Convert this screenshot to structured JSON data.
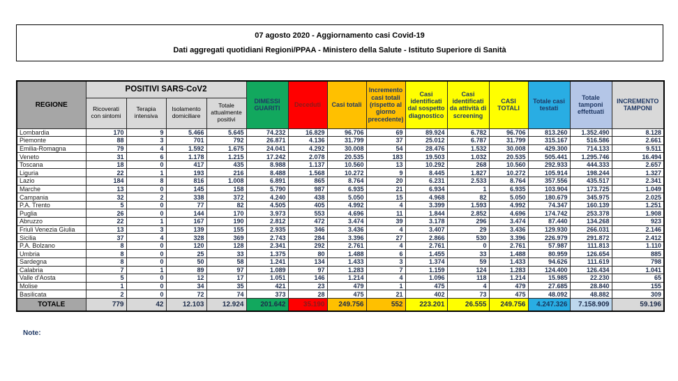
{
  "title": {
    "line1": "07 agosto 2020 - Aggiornamento casi Covid-19",
    "line2": "Dati aggregati quotidiani Regioni/PPAA - Ministero della Salute - Istituto Superiore di Sanità"
  },
  "table": {
    "region_header": "REGIONE",
    "group_header": "POSITIVI SARS-CoV2",
    "sub_headers": [
      "Ricoverati con sintomi",
      "Terapia intensiva",
      "Isolamento domiciliare",
      "Totale attualmente positivi"
    ],
    "headers": [
      "DIMESSI GUARITI",
      "Deceduti",
      "Casi totali",
      "Incremento casi totali (rispetto al giorno precedente)",
      "Casi identificati dal sospetto diagnostico",
      "Casi identificati da attività di screening",
      "CASI TOTALI",
      "Totale casi testati",
      "Totale tamponi effettuati",
      "INCREMENTO TAMPONI"
    ],
    "rows": [
      [
        "Lombardia",
        "170",
        "9",
        "5.466",
        "5.645",
        "74.232",
        "16.829",
        "96.706",
        "69",
        "89.924",
        "6.782",
        "96.706",
        "813.260",
        "1.352.490",
        "8.128"
      ],
      [
        "Piemonte",
        "88",
        "3",
        "701",
        "792",
        "26.871",
        "4.136",
        "31.799",
        "37",
        "25.012",
        "6.787",
        "31.799",
        "315.167",
        "516.586",
        "2.661"
      ],
      [
        "Emilia-Romagna",
        "79",
        "4",
        "1.592",
        "1.675",
        "24.041",
        "4.292",
        "30.008",
        "54",
        "28.476",
        "1.532",
        "30.008",
        "429.300",
        "714.133",
        "9.511"
      ],
      [
        "Veneto",
        "31",
        "6",
        "1.178",
        "1.215",
        "17.242",
        "2.078",
        "20.535",
        "183",
        "19.503",
        "1.032",
        "20.535",
        "505.441",
        "1.295.746",
        "16.494"
      ],
      [
        "Toscana",
        "18",
        "0",
        "417",
        "435",
        "8.988",
        "1.137",
        "10.560",
        "13",
        "10.292",
        "268",
        "10.560",
        "292.933",
        "444.333",
        "2.657"
      ],
      [
        "Liguria",
        "22",
        "1",
        "193",
        "216",
        "8.488",
        "1.568",
        "10.272",
        "9",
        "8.445",
        "1.827",
        "10.272",
        "105.914",
        "198.244",
        "1.327"
      ],
      [
        "Lazio",
        "184",
        "8",
        "816",
        "1.008",
        "6.891",
        "865",
        "8.764",
        "20",
        "6.231",
        "2.533",
        "8.764",
        "357.556",
        "435.517",
        "2.341"
      ],
      [
        "Marche",
        "13",
        "0",
        "145",
        "158",
        "5.790",
        "987",
        "6.935",
        "21",
        "6.934",
        "1",
        "6.935",
        "103.904",
        "173.725",
        "1.049"
      ],
      [
        "Campania",
        "32",
        "2",
        "338",
        "372",
        "4.240",
        "438",
        "5.050",
        "15",
        "4.968",
        "82",
        "5.050",
        "180.679",
        "345.975",
        "2.025"
      ],
      [
        "P.A. Trento",
        "5",
        "0",
        "77",
        "82",
        "4.505",
        "405",
        "4.992",
        "4",
        "3.399",
        "1.593",
        "4.992",
        "74.347",
        "160.139",
        "1.251"
      ],
      [
        "Puglia",
        "26",
        "0",
        "144",
        "170",
        "3.973",
        "553",
        "4.696",
        "11",
        "1.844",
        "2.852",
        "4.696",
        "174.742",
        "253.378",
        "1.908"
      ],
      [
        "Abruzzo",
        "22",
        "1",
        "167",
        "190",
        "2.812",
        "472",
        "3.474",
        "39",
        "3.178",
        "296",
        "3.474",
        "87.440",
        "134.268",
        "923"
      ],
      [
        "Friuli Venezia Giulia",
        "13",
        "3",
        "139",
        "155",
        "2.935",
        "346",
        "3.436",
        "4",
        "3.407",
        "29",
        "3.436",
        "129.930",
        "266.031",
        "2.146"
      ],
      [
        "Sicilia",
        "37",
        "4",
        "328",
        "369",
        "2.743",
        "284",
        "3.396",
        "27",
        "2.866",
        "530",
        "3.396",
        "226.979",
        "291.872",
        "2.412"
      ],
      [
        "P.A. Bolzano",
        "8",
        "0",
        "120",
        "128",
        "2.341",
        "292",
        "2.761",
        "4",
        "2.761",
        "0",
        "2.761",
        "57.987",
        "111.813",
        "1.110"
      ],
      [
        "Umbria",
        "8",
        "0",
        "25",
        "33",
        "1.375",
        "80",
        "1.488",
        "6",
        "1.455",
        "33",
        "1.488",
        "80.959",
        "126.654",
        "885"
      ],
      [
        "Sardegna",
        "8",
        "0",
        "50",
        "58",
        "1.241",
        "134",
        "1.433",
        "3",
        "1.374",
        "59",
        "1.433",
        "94.626",
        "111.619",
        "798"
      ],
      [
        "Calabria",
        "7",
        "1",
        "89",
        "97",
        "1.089",
        "97",
        "1.283",
        "7",
        "1.159",
        "124",
        "1.283",
        "124.400",
        "126.434",
        "1.041"
      ],
      [
        "Valle d'Aosta",
        "5",
        "0",
        "12",
        "17",
        "1.051",
        "146",
        "1.214",
        "4",
        "1.096",
        "118",
        "1.214",
        "15.985",
        "22.230",
        "65"
      ],
      [
        "Molise",
        "1",
        "0",
        "34",
        "35",
        "421",
        "23",
        "479",
        "1",
        "475",
        "4",
        "479",
        "27.685",
        "28.840",
        "155"
      ],
      [
        "Basilicata",
        "2",
        "0",
        "72",
        "74",
        "373",
        "28",
        "475",
        "21",
        "402",
        "73",
        "475",
        "48.092",
        "48.882",
        "309"
      ]
    ],
    "total": [
      "TOTALE",
      "779",
      "42",
      "12.103",
      "12.924",
      "201.642",
      "35.190",
      "249.756",
      "552",
      "223.201",
      "26.555",
      "249.756",
      "4.247.326",
      "7.158.909",
      "59.196"
    ]
  },
  "note_label": "Note:",
  "colors": {
    "header_dark_gray": "#A6A6A6",
    "header_light_gray": "#D9D9D9",
    "green": "#12A85E",
    "red": "#FF0000",
    "orange": "#FFC000",
    "yellow": "#FFFF00",
    "cyan": "#29ADE3",
    "light_blue": "#B4C6E7",
    "text_navy": "#1F3864",
    "deceduti_text": "#8B1A1A"
  }
}
